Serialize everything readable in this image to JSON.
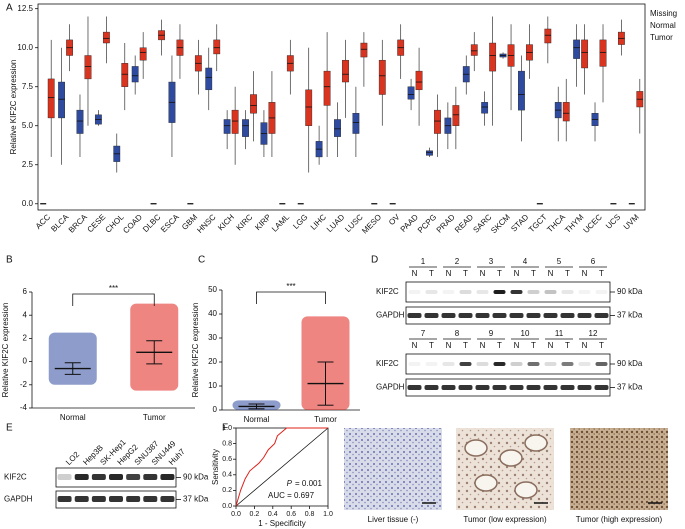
{
  "panel_labels": [
    "A",
    "B",
    "C",
    "D",
    "E",
    "F"
  ],
  "chart_data": [
    {
      "type": "box",
      "y_label": "Relative KIF2C expression",
      "categories": [
        "ACC",
        "BLCA",
        "BRCA",
        "CESE",
        "CHOL",
        "COAD",
        "DLBC",
        "ESCA",
        "GBM",
        "HNSC",
        "KICH",
        "KIRC",
        "KIRP",
        "LAML",
        "LGG",
        "LIHC",
        "LUAD",
        "LUSC",
        "MESO",
        "OV",
        "PAAD",
        "PCPG",
        "PRAD",
        "READ",
        "SARC",
        "SKCM",
        "STAD",
        "TGCT",
        "THCA",
        "THYM",
        "UCEC",
        "UCS",
        "UVM"
      ],
      "highlight_index": 15,
      "highlight_color": "#e0201a",
      "missing_label": "Missing",
      "missing_color": "#000000",
      "series": [
        {
          "name": "Normal",
          "color": "#2f4b9f",
          "values": [
            null,
            [
              2.5,
              5.5,
              6.7,
              7.8,
              10
            ],
            [
              3,
              4.5,
              5.3,
              6,
              7
            ],
            [
              5,
              5.1,
              5.4,
              5.7,
              6
            ],
            [
              2,
              2.7,
              3.2,
              3.7,
              4.5
            ],
            [
              7,
              7.8,
              8.2,
              8.8,
              9.5
            ],
            null,
            [
              3,
              5.2,
              6.5,
              7.8,
              9.5
            ],
            null,
            [
              6,
              7.3,
              8.1,
              8.7,
              10
            ],
            [
              3.5,
              4.5,
              5,
              5.4,
              6
            ],
            [
              3.5,
              4.3,
              5,
              5.4,
              6
            ],
            [
              3,
              3.8,
              4.5,
              5.2,
              6
            ],
            null,
            null,
            [
              2.5,
              3,
              3.5,
              4,
              5
            ],
            [
              3,
              4.3,
              4.8,
              5.4,
              6.5
            ],
            [
              3,
              4.5,
              5.2,
              5.8,
              7.5
            ],
            null,
            null,
            [
              6,
              6.7,
              7,
              7.5,
              8
            ],
            [
              3,
              3.1,
              3.3,
              3.4,
              3.6
            ],
            [
              3.5,
              4.5,
              5,
              5.5,
              6.5
            ],
            [
              7,
              7.8,
              8.3,
              8.8,
              9.5
            ],
            [
              5,
              5.8,
              6.2,
              6.5,
              7.2
            ],
            [
              9.3,
              9.4,
              9.5,
              9.6,
              9.7
            ],
            [
              4,
              6,
              7,
              8.5,
              9.5
            ],
            null,
            [
              4,
              5.5,
              6,
              6.5,
              7.5
            ],
            [
              7.5,
              9.3,
              10,
              10.5,
              11.5
            ],
            [
              4,
              5,
              5.4,
              5.8,
              6.5
            ],
            null,
            null
          ]
        },
        {
          "name": "Tumor",
          "color": "#d9341f",
          "values": [
            [
              3,
              5.5,
              6.8,
              8,
              10.5
            ],
            [
              8.5,
              9.5,
              10,
              10.5,
              11.5
            ],
            [
              5,
              8,
              8.8,
              9.5,
              12
            ],
            [
              9,
              10.3,
              10.6,
              11,
              12
            ],
            [
              6,
              7.5,
              8.3,
              9,
              10.3
            ],
            [
              8,
              9.2,
              9.7,
              10,
              11
            ],
            [
              9.5,
              10.5,
              10.8,
              11.1,
              11.8
            ],
            [
              8,
              9.5,
              10,
              10.5,
              11.5
            ],
            [
              7,
              8.5,
              9,
              9.5,
              10.5
            ],
            [
              8.5,
              9.6,
              10,
              10.5,
              11.5
            ],
            [
              2.5,
              4.5,
              5.3,
              6,
              7.5
            ],
            [
              4,
              5.8,
              6.3,
              7,
              8.5
            ],
            [
              3,
              4.5,
              5.5,
              6.5,
              8.5
            ],
            [
              7,
              8.5,
              9,
              9.5,
              10.5
            ],
            [
              2,
              5,
              6.2,
              7.3,
              10
            ],
            [
              3,
              6.3,
              7.5,
              8.5,
              11
            ],
            [
              5.5,
              7.8,
              8.3,
              9.2,
              10.5
            ],
            [
              7.5,
              9.4,
              9.9,
              10.3,
              11
            ],
            [
              5,
              7,
              8.2,
              9.2,
              10.5
            ],
            [
              8,
              9.5,
              10,
              10.5,
              11.5
            ],
            [
              5,
              7.3,
              7.8,
              8.5,
              10
            ],
            [
              3,
              4.5,
              5.3,
              6,
              7
            ],
            [
              3.5,
              5,
              5.7,
              6.3,
              7.5
            ],
            [
              8.5,
              9.5,
              9.8,
              10.2,
              11
            ],
            [
              5,
              8.5,
              9.5,
              10.3,
              12
            ],
            [
              6,
              8.8,
              9.5,
              10.2,
              11.5
            ],
            [
              8,
              9.2,
              9.7,
              10.2,
              11.5
            ],
            [
              9,
              10.3,
              10.8,
              11.2,
              12
            ],
            [
              4,
              5.3,
              5.8,
              6.5,
              8
            ],
            [
              7,
              8.7,
              9.7,
              10.5,
              11.5
            ],
            [
              6.5,
              8.8,
              9.7,
              10.5,
              11.5
            ],
            [
              9.5,
              10.2,
              10.6,
              11,
              11.8
            ],
            [
              4.5,
              6.2,
              6.7,
              7.2,
              8
            ]
          ]
        }
      ],
      "ylim": [
        -0.4,
        12.8
      ],
      "yticks": [
        {
          "value": 0,
          "label": "0.0"
        },
        2.5,
        {
          "value": 5,
          "label": "5.0"
        },
        7.5,
        {
          "value": 10,
          "label": "10.0"
        },
        12.5
      ]
    },
    {
      "type": "dot",
      "y_label": "Relative KIF2C expression",
      "categories": [
        "Normal",
        "Tumor"
      ],
      "colors": [
        "#2f4b9f",
        "#e0201a"
      ],
      "values": [
        -0.6,
        0.8
      ],
      "errors": [
        0.5,
        1.0
      ],
      "ranges": [
        [
          -2,
          2.5
        ],
        [
          -2.5,
          5
        ]
      ],
      "annotation": "***",
      "ylim": [
        -4,
        6
      ],
      "yticks": [
        -4,
        -2,
        0,
        2,
        4,
        6
      ]
    },
    {
      "type": "dot",
      "y_label": "Relative KIF2C expression",
      "categories": [
        "Normal",
        "Tumor"
      ],
      "colors": [
        "#2f4b9f",
        "#e0201a"
      ],
      "values": [
        1.5,
        11
      ],
      "errors": [
        1,
        9
      ],
      "ranges": [
        [
          0,
          4
        ],
        [
          0,
          39
        ]
      ],
      "annotation": "***",
      "ylim": [
        0,
        50
      ],
      "yticks": [
        0,
        10,
        20,
        30,
        40,
        50
      ]
    },
    {
      "type": "line",
      "x_label": "1 - Specificity",
      "y_label": "Sensitivity",
      "color": "#e0201a",
      "x": [
        0,
        0.05,
        0.1,
        0.15,
        0.25,
        0.3,
        0.35,
        0.42,
        0.45,
        0.5,
        0.55,
        1
      ],
      "values": [
        0,
        0.2,
        0.35,
        0.45,
        0.55,
        0.62,
        0.72,
        0.8,
        0.9,
        0.95,
        1,
        1
      ],
      "p_symbol": "P",
      "p_text": "= 0.001",
      "auc_text": "AUC = 0.697",
      "xlim": [
        0,
        1
      ],
      "ylim": [
        0,
        1
      ],
      "xticks": [
        {
          "value": 0,
          "label": "0.0"
        },
        0.2,
        0.4,
        0.6,
        0.8,
        {
          "value": 1,
          "label": "1.0"
        }
      ],
      "yticks": [
        {
          "value": 0,
          "label": "0.0"
        },
        0.2,
        0.4,
        0.6,
        0.8,
        {
          "value": 1,
          "label": "1.0"
        }
      ]
    }
  ],
  "blot_d": {
    "rows": [
      [
        "1",
        "2",
        "3",
        "4",
        "5",
        "6"
      ],
      [
        "7",
        "8",
        "9",
        "10",
        "11",
        "12"
      ]
    ],
    "lanes": [
      "N",
      "T"
    ],
    "proteins": [
      "KIF2C",
      "GAPDH"
    ],
    "markers": [
      "90 kDa",
      "37 kDa"
    ]
  },
  "blot_e": {
    "cells": [
      "LO2",
      "Hep3B",
      "SK-Hep1",
      "HepG2",
      "SNU387",
      "SNU449",
      "Huh7"
    ],
    "proteins": [
      "KIF2C",
      "GAPDH"
    ],
    "markers": [
      "90 kDa",
      "37 kDa"
    ]
  },
  "histology": [
    "Liver tissue (-)",
    "Tumor (low expression)",
    "Tumor (high expression)"
  ]
}
